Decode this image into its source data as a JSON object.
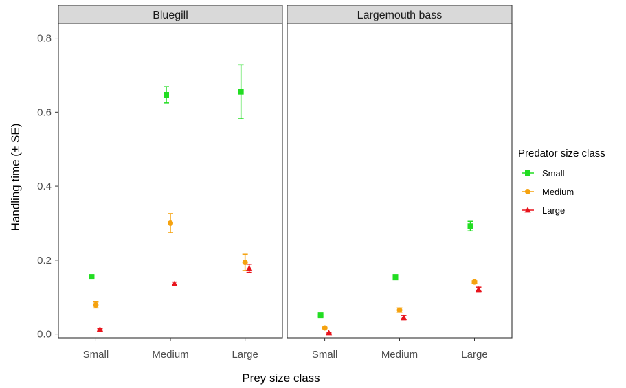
{
  "chart_data": {
    "type": "scatter",
    "xlabel": "Prey size class",
    "ylabel": "Handling time (± SE)",
    "categories": [
      "Small",
      "Medium",
      "Large"
    ],
    "ylim": [
      -0.01,
      0.84
    ],
    "yticks": [
      0.0,
      0.2,
      0.4,
      0.6,
      0.8
    ],
    "ytick_labels": [
      "0.0",
      "0.2",
      "0.4",
      "0.6",
      "0.8"
    ],
    "grid": false,
    "legend": {
      "title": "Predator size class",
      "placement": "right",
      "entries": [
        "Small",
        "Medium",
        "Large"
      ]
    },
    "series_style": [
      {
        "name": "Small",
        "color": "#22dd22",
        "marker": "square"
      },
      {
        "name": "Medium",
        "color": "#f5a20f",
        "marker": "circle"
      },
      {
        "name": "Large",
        "color": "#e8141c",
        "marker": "triangle"
      }
    ],
    "panels": [
      {
        "title": "Bluegill",
        "series": [
          {
            "name": "Small",
            "values": [
              0.155,
              0.647,
              0.655
            ],
            "se": [
              0.003,
              0.022,
              0.073
            ]
          },
          {
            "name": "Medium",
            "values": [
              0.079,
              0.3,
              0.194
            ],
            "se": [
              0.008,
              0.026,
              0.022
            ]
          },
          {
            "name": "Large",
            "values": [
              0.013,
              0.136,
              0.178
            ],
            "se": [
              0.002,
              0.005,
              0.011
            ]
          }
        ]
      },
      {
        "title": "Largemouth bass",
        "series": [
          {
            "name": "Small",
            "values": [
              0.051,
              0.154,
              0.292
            ],
            "se": [
              0.002,
              0.007,
              0.013
            ]
          },
          {
            "name": "Medium",
            "values": [
              0.017,
              0.065,
              0.141
            ],
            "se": [
              0.002,
              0.006,
              0.003
            ]
          },
          {
            "name": "Large",
            "values": [
              0.003,
              0.045,
              0.121
            ],
            "se": [
              0.002,
              0.006,
              0.006
            ]
          }
        ]
      }
    ]
  }
}
